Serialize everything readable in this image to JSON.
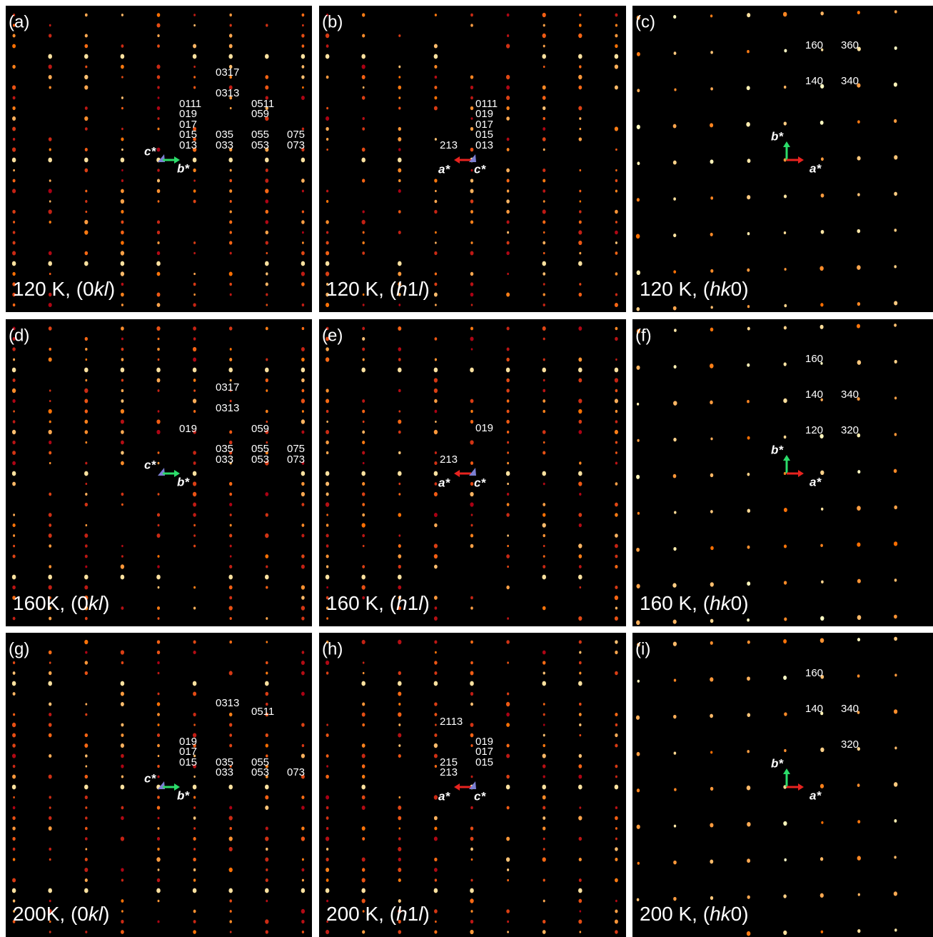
{
  "panels": [
    {
      "letter": "(a)",
      "caption": [
        {
          "text": "120 K, (0"
        },
        {
          "text": "kl",
          "italic": true
        },
        {
          "text": ")"
        }
      ],
      "vectors": [
        {
          "label": "c*",
          "color": "#7c7fd2",
          "direction": "out"
        },
        {
          "label": "b*",
          "color": "#2bdc6a",
          "direction": "right"
        }
      ],
      "reflections": [
        "0317",
        "0313",
        "0111",
        "0511",
        "019",
        "059",
        "017",
        "015",
        "035",
        "055",
        "075",
        "013",
        "033",
        "053",
        "073"
      ]
    },
    {
      "letter": "(b)",
      "caption": [
        {
          "text": "120 K, ("
        },
        {
          "text": "h",
          "italic": true
        },
        {
          "text": "1"
        },
        {
          "text": "l",
          "italic": true
        },
        {
          "text": ")"
        }
      ],
      "vectors": [
        {
          "label": "a*",
          "color": "#e8231f",
          "direction": "left"
        },
        {
          "label": "c*",
          "color": "#7c7fd2",
          "direction": "out"
        }
      ],
      "reflections": [
        "0111",
        "019",
        "017",
        "015",
        "213",
        "013"
      ]
    },
    {
      "letter": "(c)",
      "caption": [
        {
          "text": "120 K, ("
        },
        {
          "text": "hk",
          "italic": true
        },
        {
          "text": "0)"
        }
      ],
      "vectors": [
        {
          "label": "b*",
          "color": "#2bdc6a",
          "direction": "up"
        },
        {
          "label": "a*",
          "color": "#e8231f",
          "direction": "right"
        }
      ],
      "reflections": [
        "160",
        "360",
        "140",
        "340"
      ]
    },
    {
      "letter": "(d)",
      "caption": [
        {
          "text": "160K, (0"
        },
        {
          "text": "kl",
          "italic": true
        },
        {
          "text": ")"
        }
      ],
      "vectors": [
        {
          "label": "c*",
          "color": "#7c7fd2",
          "direction": "out"
        },
        {
          "label": "b*",
          "color": "#2bdc6a",
          "direction": "right"
        }
      ],
      "reflections": [
        "0317",
        "0313",
        "019",
        "059",
        "035",
        "055",
        "075",
        "033",
        "053",
        "073"
      ]
    },
    {
      "letter": "(e)",
      "caption": [
        {
          "text": "160 K, ("
        },
        {
          "text": "h",
          "italic": true
        },
        {
          "text": "1"
        },
        {
          "text": "l",
          "italic": true
        },
        {
          "text": ")"
        }
      ],
      "vectors": [
        {
          "label": "a*",
          "color": "#e8231f",
          "direction": "left"
        },
        {
          "label": "c*",
          "color": "#7c7fd2",
          "direction": "out"
        }
      ],
      "reflections": [
        "019",
        "213"
      ]
    },
    {
      "letter": "(f)",
      "caption": [
        {
          "text": "160 K, ("
        },
        {
          "text": "hk",
          "italic": true
        },
        {
          "text": "0)"
        }
      ],
      "vectors": [
        {
          "label": "b*",
          "color": "#2bdc6a",
          "direction": "up"
        },
        {
          "label": "a*",
          "color": "#e8231f",
          "direction": "right"
        }
      ],
      "reflections": [
        "160",
        "140",
        "340",
        "120",
        "320"
      ]
    },
    {
      "letter": "(g)",
      "caption": [
        {
          "text": "200K, (0"
        },
        {
          "text": "kl",
          "italic": true
        },
        {
          "text": ")"
        }
      ],
      "vectors": [
        {
          "label": "c*",
          "color": "#7c7fd2",
          "direction": "out"
        },
        {
          "label": "b*",
          "color": "#2bdc6a",
          "direction": "right"
        }
      ],
      "reflections": [
        "0313",
        "0511",
        "019",
        "017",
        "015",
        "035",
        "055",
        "033",
        "053",
        "073"
      ]
    },
    {
      "letter": "(h)",
      "caption": [
        {
          "text": "200 K, ("
        },
        {
          "text": "h",
          "italic": true
        },
        {
          "text": "1"
        },
        {
          "text": "l",
          "italic": true
        },
        {
          "text": ")"
        }
      ],
      "vectors": [
        {
          "label": "a*",
          "color": "#e8231f",
          "direction": "left"
        },
        {
          "label": "c*",
          "color": "#7c7fd2",
          "direction": "out"
        }
      ],
      "reflections": [
        "2113",
        "019",
        "017",
        "015",
        "215",
        "213"
      ]
    },
    {
      "letter": "(i)",
      "caption": [
        {
          "text": "200 K, ("
        },
        {
          "text": "hk",
          "italic": true
        },
        {
          "text": "0)"
        }
      ],
      "vectors": [
        {
          "label": "b*",
          "color": "#2bdc6a",
          "direction": "up"
        },
        {
          "label": "a*",
          "color": "#e8231f",
          "direction": "right"
        }
      ],
      "reflections": [
        "160",
        "140",
        "340",
        "320"
      ]
    }
  ]
}
